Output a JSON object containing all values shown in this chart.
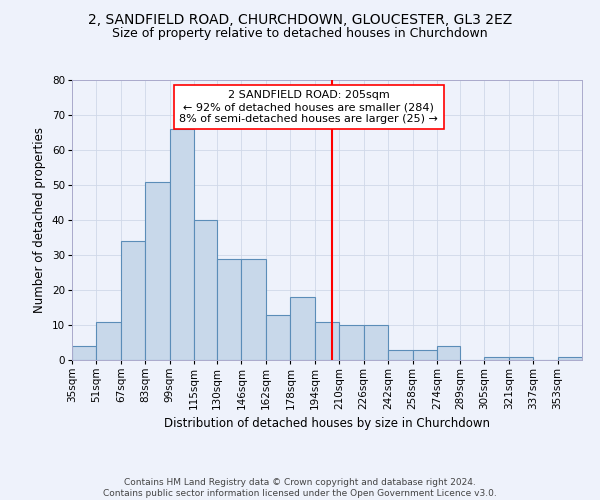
{
  "title_line1": "2, SANDFIELD ROAD, CHURCHDOWN, GLOUCESTER, GL3 2EZ",
  "title_line2": "Size of property relative to detached houses in Churchdown",
  "xlabel": "Distribution of detached houses by size in Churchdown",
  "ylabel": "Number of detached properties",
  "bar_values": [
    4,
    11,
    34,
    51,
    66,
    40,
    29,
    29,
    13,
    18,
    11,
    10,
    10,
    3,
    3,
    4,
    0,
    1,
    1,
    0,
    1
  ],
  "bin_labels": [
    "35sqm",
    "51sqm",
    "67sqm",
    "83sqm",
    "99sqm",
    "115sqm",
    "130sqm",
    "146sqm",
    "162sqm",
    "178sqm",
    "194sqm",
    "210sqm",
    "226sqm",
    "242sqm",
    "258sqm",
    "274sqm",
    "289sqm",
    "305sqm",
    "321sqm",
    "337sqm",
    "353sqm"
  ],
  "bin_edges": [
    35,
    51,
    67,
    83,
    99,
    115,
    130,
    146,
    162,
    178,
    194,
    210,
    226,
    242,
    258,
    274,
    289,
    305,
    321,
    337,
    353,
    369
  ],
  "bar_color": "#c8d8ea",
  "bar_edge_color": "#5b8db8",
  "vline_x": 205,
  "vline_color": "red",
  "annotation_text": "2 SANDFIELD ROAD: 205sqm\n← 92% of detached houses are smaller (284)\n8% of semi-detached houses are larger (25) →",
  "annotation_box_color": "white",
  "annotation_box_edge": "red",
  "ylim": [
    0,
    80
  ],
  "yticks": [
    0,
    10,
    20,
    30,
    40,
    50,
    60,
    70,
    80
  ],
  "grid_color": "#d0d8e8",
  "bg_color": "#eef2fb",
  "footer": "Contains HM Land Registry data © Crown copyright and database right 2024.\nContains public sector information licensed under the Open Government Licence v3.0.",
  "title_fontsize": 10,
  "subtitle_fontsize": 9,
  "axis_label_fontsize": 8.5,
  "tick_fontsize": 7.5,
  "annotation_fontsize": 8,
  "footer_fontsize": 6.5
}
